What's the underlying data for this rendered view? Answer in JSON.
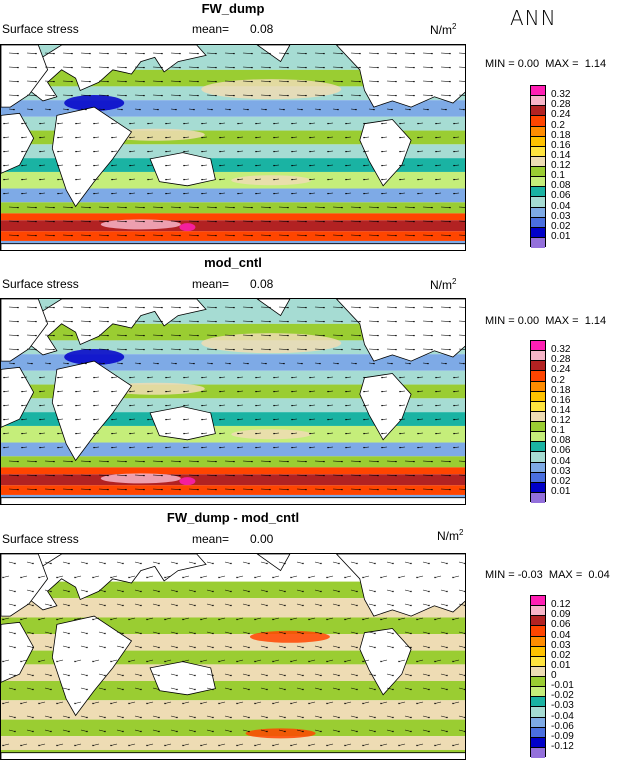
{
  "season": "ANN",
  "panels": [
    {
      "title": "FW_dump",
      "field": "Surface stress",
      "mean_label": "mean=",
      "mean": "0.08",
      "unit_base": "N/m",
      "unit_exp": "2",
      "min_label": "MIN =",
      "min": "0.00",
      "max_label": "MAX =",
      "max": "1.14",
      "colorbar": {
        "labels": [
          "0.32",
          "0.28",
          "0.24",
          "0.2",
          "0.18",
          "0.16",
          "0.14",
          "0.12",
          "0.1",
          "0.08",
          "0.06",
          "0.04",
          "0.03",
          "0.02",
          "0.01"
        ],
        "colors": [
          "#ff1fb3",
          "#f7b5c8",
          "#b22222",
          "#ff4500",
          "#ff8c00",
          "#ffc200",
          "#ffe43f",
          "#eedcb4",
          "#9acd32",
          "#c5ee7a",
          "#1ab3a3",
          "#a6dcd3",
          "#7eaae6",
          "#4a6fe0",
          "#0000c8",
          "#9370db"
        ]
      }
    },
    {
      "title": "mod_cntl",
      "field": "Surface stress",
      "mean_label": "mean=",
      "mean": "0.08",
      "unit_base": "N/m",
      "unit_exp": "2",
      "min_label": "MIN =",
      "min": "0.00",
      "max_label": "MAX =",
      "max": "1.14",
      "colorbar": {
        "labels": [
          "0.32",
          "0.28",
          "0.24",
          "0.2",
          "0.18",
          "0.16",
          "0.14",
          "0.12",
          "0.1",
          "0.08",
          "0.06",
          "0.04",
          "0.03",
          "0.02",
          "0.01"
        ],
        "colors": [
          "#ff1fb3",
          "#f7b5c8",
          "#b22222",
          "#ff4500",
          "#ff8c00",
          "#ffc200",
          "#ffe43f",
          "#eedcb4",
          "#9acd32",
          "#c5ee7a",
          "#1ab3a3",
          "#a6dcd3",
          "#7eaae6",
          "#4a6fe0",
          "#0000c8",
          "#9370db"
        ]
      }
    },
    {
      "title": "FW_dump - mod_cntl",
      "field": "Surface stress",
      "mean_label": "mean=",
      "mean": "0.00",
      "unit_base": "N/m",
      "unit_exp": "2",
      "min_label": "MIN =",
      "min": "-0.03",
      "max_label": "MAX =",
      "max": "0.04",
      "colorbar": {
        "labels": [
          "0.12",
          "0.09",
          "0.06",
          "0.04",
          "0.03",
          "0.02",
          "0.01",
          "0",
          "-0.01",
          "-0.02",
          "-0.03",
          "-0.04",
          "-0.06",
          "-0.09",
          "-0.12"
        ],
        "colors": [
          "#ff1fb3",
          "#f7b5c8",
          "#b22222",
          "#ff4500",
          "#ff8c00",
          "#ffc200",
          "#ffe43f",
          "#eedcb4",
          "#9acd32",
          "#c5ee7a",
          "#1ab3a3",
          "#a6dcd3",
          "#7eaae6",
          "#4a6fe0",
          "#0000c8",
          "#9370db"
        ]
      }
    }
  ],
  "chart_data": [
    {
      "type": "heatmap",
      "title": "FW_dump",
      "variable": "Surface stress",
      "units": "N/m2",
      "mean": 0.08,
      "min": 0.0,
      "max": 1.14,
      "contour_levels": [
        0.01,
        0.02,
        0.03,
        0.04,
        0.06,
        0.08,
        0.1,
        0.12,
        0.14,
        0.16,
        0.18,
        0.2,
        0.24,
        0.28,
        0.32
      ],
      "zonal_bands": [
        {
          "lat": 60,
          "value": 0.04
        },
        {
          "lat": 45,
          "value": 0.14
        },
        {
          "lat": 30,
          "value": 0.04
        },
        {
          "lat": 15,
          "value": 0.1
        },
        {
          "lat": 0,
          "value": 0.04
        },
        {
          "lat": -15,
          "value": 0.1
        },
        {
          "lat": -30,
          "value": 0.04
        },
        {
          "lat": -45,
          "value": 0.24
        },
        {
          "lat": -55,
          "value": 0.24
        }
      ]
    },
    {
      "type": "heatmap",
      "title": "mod_cntl",
      "variable": "Surface stress",
      "units": "N/m2",
      "mean": 0.08,
      "min": 0.0,
      "max": 1.14,
      "contour_levels": [
        0.01,
        0.02,
        0.03,
        0.04,
        0.06,
        0.08,
        0.1,
        0.12,
        0.14,
        0.16,
        0.18,
        0.2,
        0.24,
        0.28,
        0.32
      ],
      "zonal_bands": [
        {
          "lat": 60,
          "value": 0.04
        },
        {
          "lat": 45,
          "value": 0.14
        },
        {
          "lat": 30,
          "value": 0.04
        },
        {
          "lat": 15,
          "value": 0.1
        },
        {
          "lat": 0,
          "value": 0.04
        },
        {
          "lat": -15,
          "value": 0.1
        },
        {
          "lat": -30,
          "value": 0.04
        },
        {
          "lat": -45,
          "value": 0.24
        },
        {
          "lat": -55,
          "value": 0.24
        }
      ]
    },
    {
      "type": "heatmap",
      "title": "FW_dump - mod_cntl",
      "variable": "Surface stress",
      "units": "N/m2",
      "mean": 0.0,
      "min": -0.03,
      "max": 0.04,
      "contour_levels": [
        -0.12,
        -0.09,
        -0.06,
        -0.04,
        -0.03,
        -0.02,
        -0.01,
        0,
        0.01,
        0.02,
        0.03,
        0.04,
        0.06,
        0.09,
        0.12
      ],
      "zonal_bands": [
        {
          "lat": 60,
          "value": 0.0
        },
        {
          "lat": 45,
          "value": -0.01
        },
        {
          "lat": 30,
          "value": 0.0
        },
        {
          "lat": 15,
          "value": -0.01
        },
        {
          "lat": 0,
          "value": 0.0
        },
        {
          "lat": -15,
          "value": -0.01
        },
        {
          "lat": -30,
          "value": 0.0
        },
        {
          "lat": -45,
          "value": -0.01
        },
        {
          "lat": -55,
          "value": 0.0
        }
      ]
    }
  ]
}
